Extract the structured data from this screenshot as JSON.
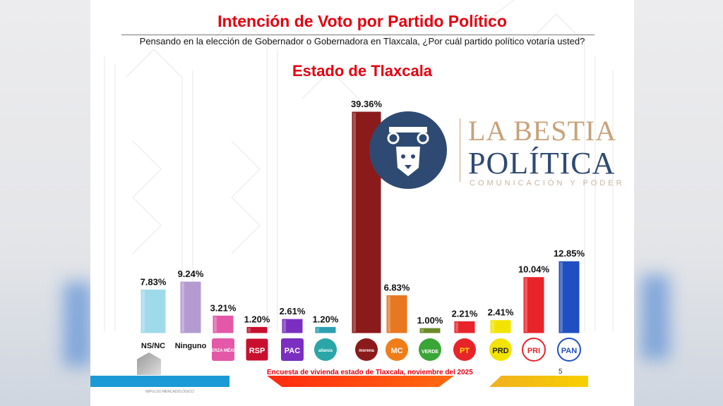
{
  "header": {
    "title": "Intención de Voto por Partido Político",
    "question": "Pensando en la elección de Gobernador o Gobernadora en Tlaxcala, ¿Por cuál partido político votaría usted?",
    "region": "Estado de Tlaxcala"
  },
  "footer": {
    "source": "Encuesta de vivienda estado de Tlaxcala, noviembre del 2025",
    "page": "5",
    "brand": "IMPULSO MERCADOLÓGICO"
  },
  "watermark": {
    "line1": "LA BESTIA",
    "line2": "POLÍTICA",
    "line3": "COMUNICACIÓN Y PODER"
  },
  "chart_data": {
    "type": "bar",
    "title": "Intención de Voto por Partido Político",
    "ylim": [
      0,
      40
    ],
    "grid": false,
    "categories": [
      "NS/NC",
      "Ninguno",
      "Fuerza por México",
      "RSP",
      "PAC",
      "Alianza",
      "morena",
      "Movimiento Ciudadano",
      "Verde",
      "PT",
      "PRD",
      "PRI",
      "PAN"
    ],
    "category_labels": [
      "NS/NC",
      "Ninguno",
      "FUERZA MÉXICO",
      "RSP",
      "PAC",
      "alianza",
      "morena",
      "MC",
      "VERDE",
      "PT",
      "PRD",
      "PRI",
      "PAN"
    ],
    "label_kind": [
      "text",
      "text",
      "logo",
      "logo",
      "logo",
      "logo",
      "logo",
      "logo",
      "logo",
      "logo",
      "logo",
      "logo",
      "logo"
    ],
    "values": [
      7.83,
      9.24,
      3.21,
      1.2,
      2.61,
      1.2,
      39.36,
      6.83,
      1.0,
      2.21,
      2.41,
      10.04,
      12.85
    ],
    "data_labels": [
      "7.83%",
      "9.24%",
      "3.21%",
      "1.20%",
      "2.61%",
      "1.20%",
      "39.36%",
      "6.83%",
      "1.00%",
      "2.21%",
      "2.41%",
      "10.04%",
      "12.85%"
    ],
    "colors": [
      "#9fdaea",
      "#b39bd2",
      "#e458a8",
      "#c8102e",
      "#7b2fc0",
      "#2e9fb3",
      "#8b1a1a",
      "#e87722",
      "#6b8a2a",
      "#e8242b",
      "#f2e400",
      "#e8242b",
      "#1f4fc0"
    ],
    "logo_colors": [
      "",
      "",
      "#e458a8",
      "#c8102e",
      "#7b2fc0",
      "#2aa6a8",
      "#8b1a1a",
      "#f07d1a",
      "#3aa635",
      "#e8242b",
      "#f2e400",
      "#ffffff",
      "#ffffff"
    ],
    "logo_text_colors": [
      "",
      "",
      "#fff",
      "#fff",
      "#fff",
      "#fff",
      "#fff",
      "#fff",
      "#fff",
      "#ffe600",
      "#222",
      "#e8242b",
      "#1f4fc0"
    ]
  }
}
